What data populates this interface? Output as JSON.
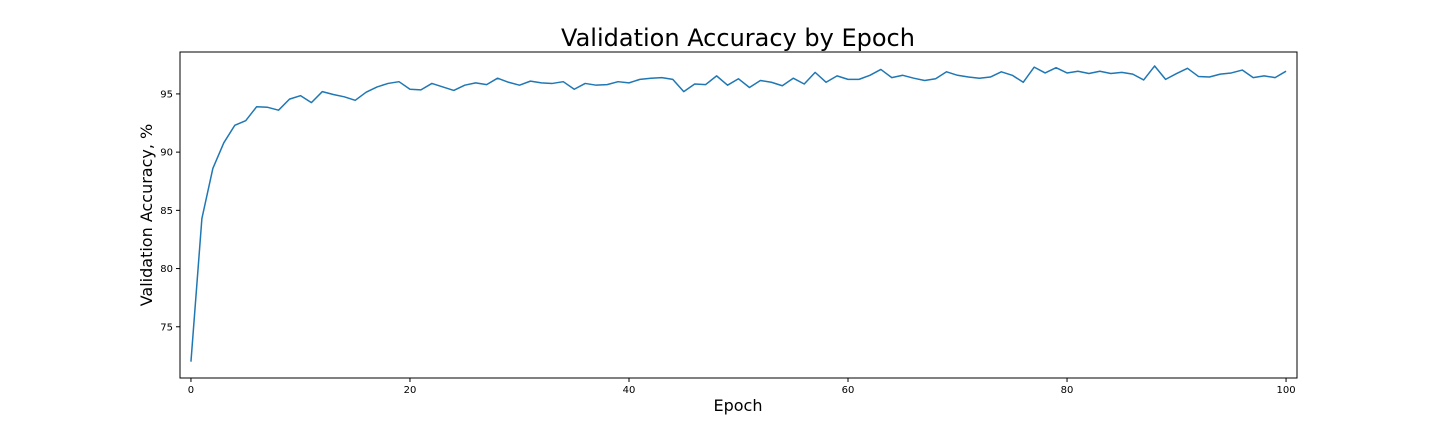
{
  "chart_data": {
    "type": "line",
    "title": "Validation Accuracy by Epoch",
    "xlabel": "Epoch",
    "ylabel": "Validation Accuracy, %",
    "xlim": [
      -1,
      101
    ],
    "ylim": [
      70.6,
      98.6
    ],
    "xticks": [
      0,
      20,
      40,
      60,
      80,
      100
    ],
    "yticks": [
      75,
      80,
      85,
      90,
      95
    ],
    "grid": false,
    "colors": {
      "line": "#1f77b4",
      "axes": "#000000",
      "background": "#ffffff"
    },
    "series": [
      {
        "x": [
          0,
          1,
          2,
          3,
          4,
          5,
          6,
          7,
          8,
          9,
          10,
          11,
          12,
          13,
          14,
          15,
          16,
          17,
          18,
          19,
          20,
          21,
          22,
          23,
          24,
          25,
          26,
          27,
          28,
          29,
          30,
          31,
          32,
          33,
          34,
          35,
          36,
          37,
          38,
          39,
          40,
          41,
          42,
          43,
          44,
          45,
          46,
          47,
          48,
          49,
          50,
          51,
          52,
          53,
          54,
          55,
          56,
          57,
          58,
          59,
          60,
          61,
          62,
          63,
          64,
          65,
          66,
          67,
          68,
          69,
          70,
          71,
          72,
          73,
          74,
          75,
          76,
          77,
          78,
          79,
          80,
          81,
          82,
          83,
          84,
          85,
          86,
          87,
          88,
          89,
          90,
          91,
          92,
          93,
          94,
          95,
          96,
          97,
          98,
          99,
          100
        ],
        "values": [
          72.0,
          84.3,
          88.6,
          90.8,
          92.3,
          92.7,
          93.9,
          93.85,
          93.6,
          94.55,
          94.85,
          94.25,
          95.2,
          94.95,
          94.75,
          94.45,
          95.15,
          95.6,
          95.9,
          96.05,
          95.4,
          95.35,
          95.9,
          95.6,
          95.3,
          95.75,
          95.95,
          95.8,
          96.35,
          96.0,
          95.75,
          96.1,
          95.95,
          95.9,
          96.05,
          95.4,
          95.9,
          95.75,
          95.8,
          96.05,
          95.95,
          96.25,
          96.35,
          96.4,
          96.25,
          95.2,
          95.85,
          95.8,
          96.55,
          95.75,
          96.3,
          95.55,
          96.15,
          96.0,
          95.7,
          96.35,
          95.85,
          96.85,
          96.0,
          96.55,
          96.25,
          96.25,
          96.6,
          97.1,
          96.4,
          96.6,
          96.35,
          96.15,
          96.3,
          96.9,
          96.6,
          96.45,
          96.35,
          96.45,
          96.9,
          96.6,
          96.0,
          97.3,
          96.8,
          97.25,
          96.8,
          96.95,
          96.75,
          96.95,
          96.75,
          96.85,
          96.7,
          96.2,
          97.4,
          96.25,
          96.75,
          97.2,
          96.5,
          96.45,
          96.7,
          96.8,
          97.05,
          96.4,
          96.55,
          96.4,
          96.95
        ]
      }
    ]
  }
}
